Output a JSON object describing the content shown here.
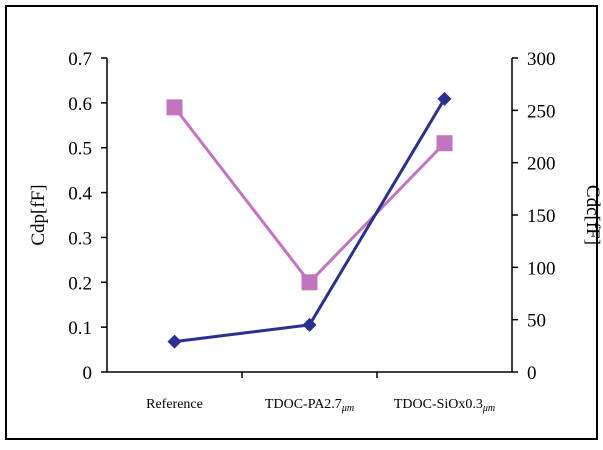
{
  "chart_data": {
    "type": "line",
    "title": "",
    "categories": [
      "Reference",
      "TDOC-PA2.7μm",
      "TDOC-SiOx0.3μm"
    ],
    "category_labels": [
      {
        "main": "Reference",
        "suffix": ""
      },
      {
        "main": "TDOC-PA2.7",
        "suffix": "μm"
      },
      {
        "main": "TDOC-SiOx0.3",
        "suffix": "μm"
      }
    ],
    "ylabel": "Cdp[fF]",
    "ylabel_right": "Cdc[fF]",
    "ylim": [
      0,
      0.7
    ],
    "ylim_right": [
      0,
      300
    ],
    "yticks": [
      "0",
      "0.1",
      "0.2",
      "0.3",
      "0.4",
      "0.5",
      "0.6",
      "0.7"
    ],
    "yticks_right": [
      "0",
      "50",
      "100",
      "150",
      "200",
      "250",
      "300"
    ],
    "grid": false,
    "legend": "none",
    "series": [
      {
        "axis": "left",
        "marker": "square",
        "color": "#c275bf",
        "values": [
          0.59,
          0.2,
          0.51
        ]
      },
      {
        "axis": "right",
        "marker": "diamond",
        "color": "#2b2f8f",
        "values": [
          29,
          45,
          261
        ]
      }
    ]
  }
}
